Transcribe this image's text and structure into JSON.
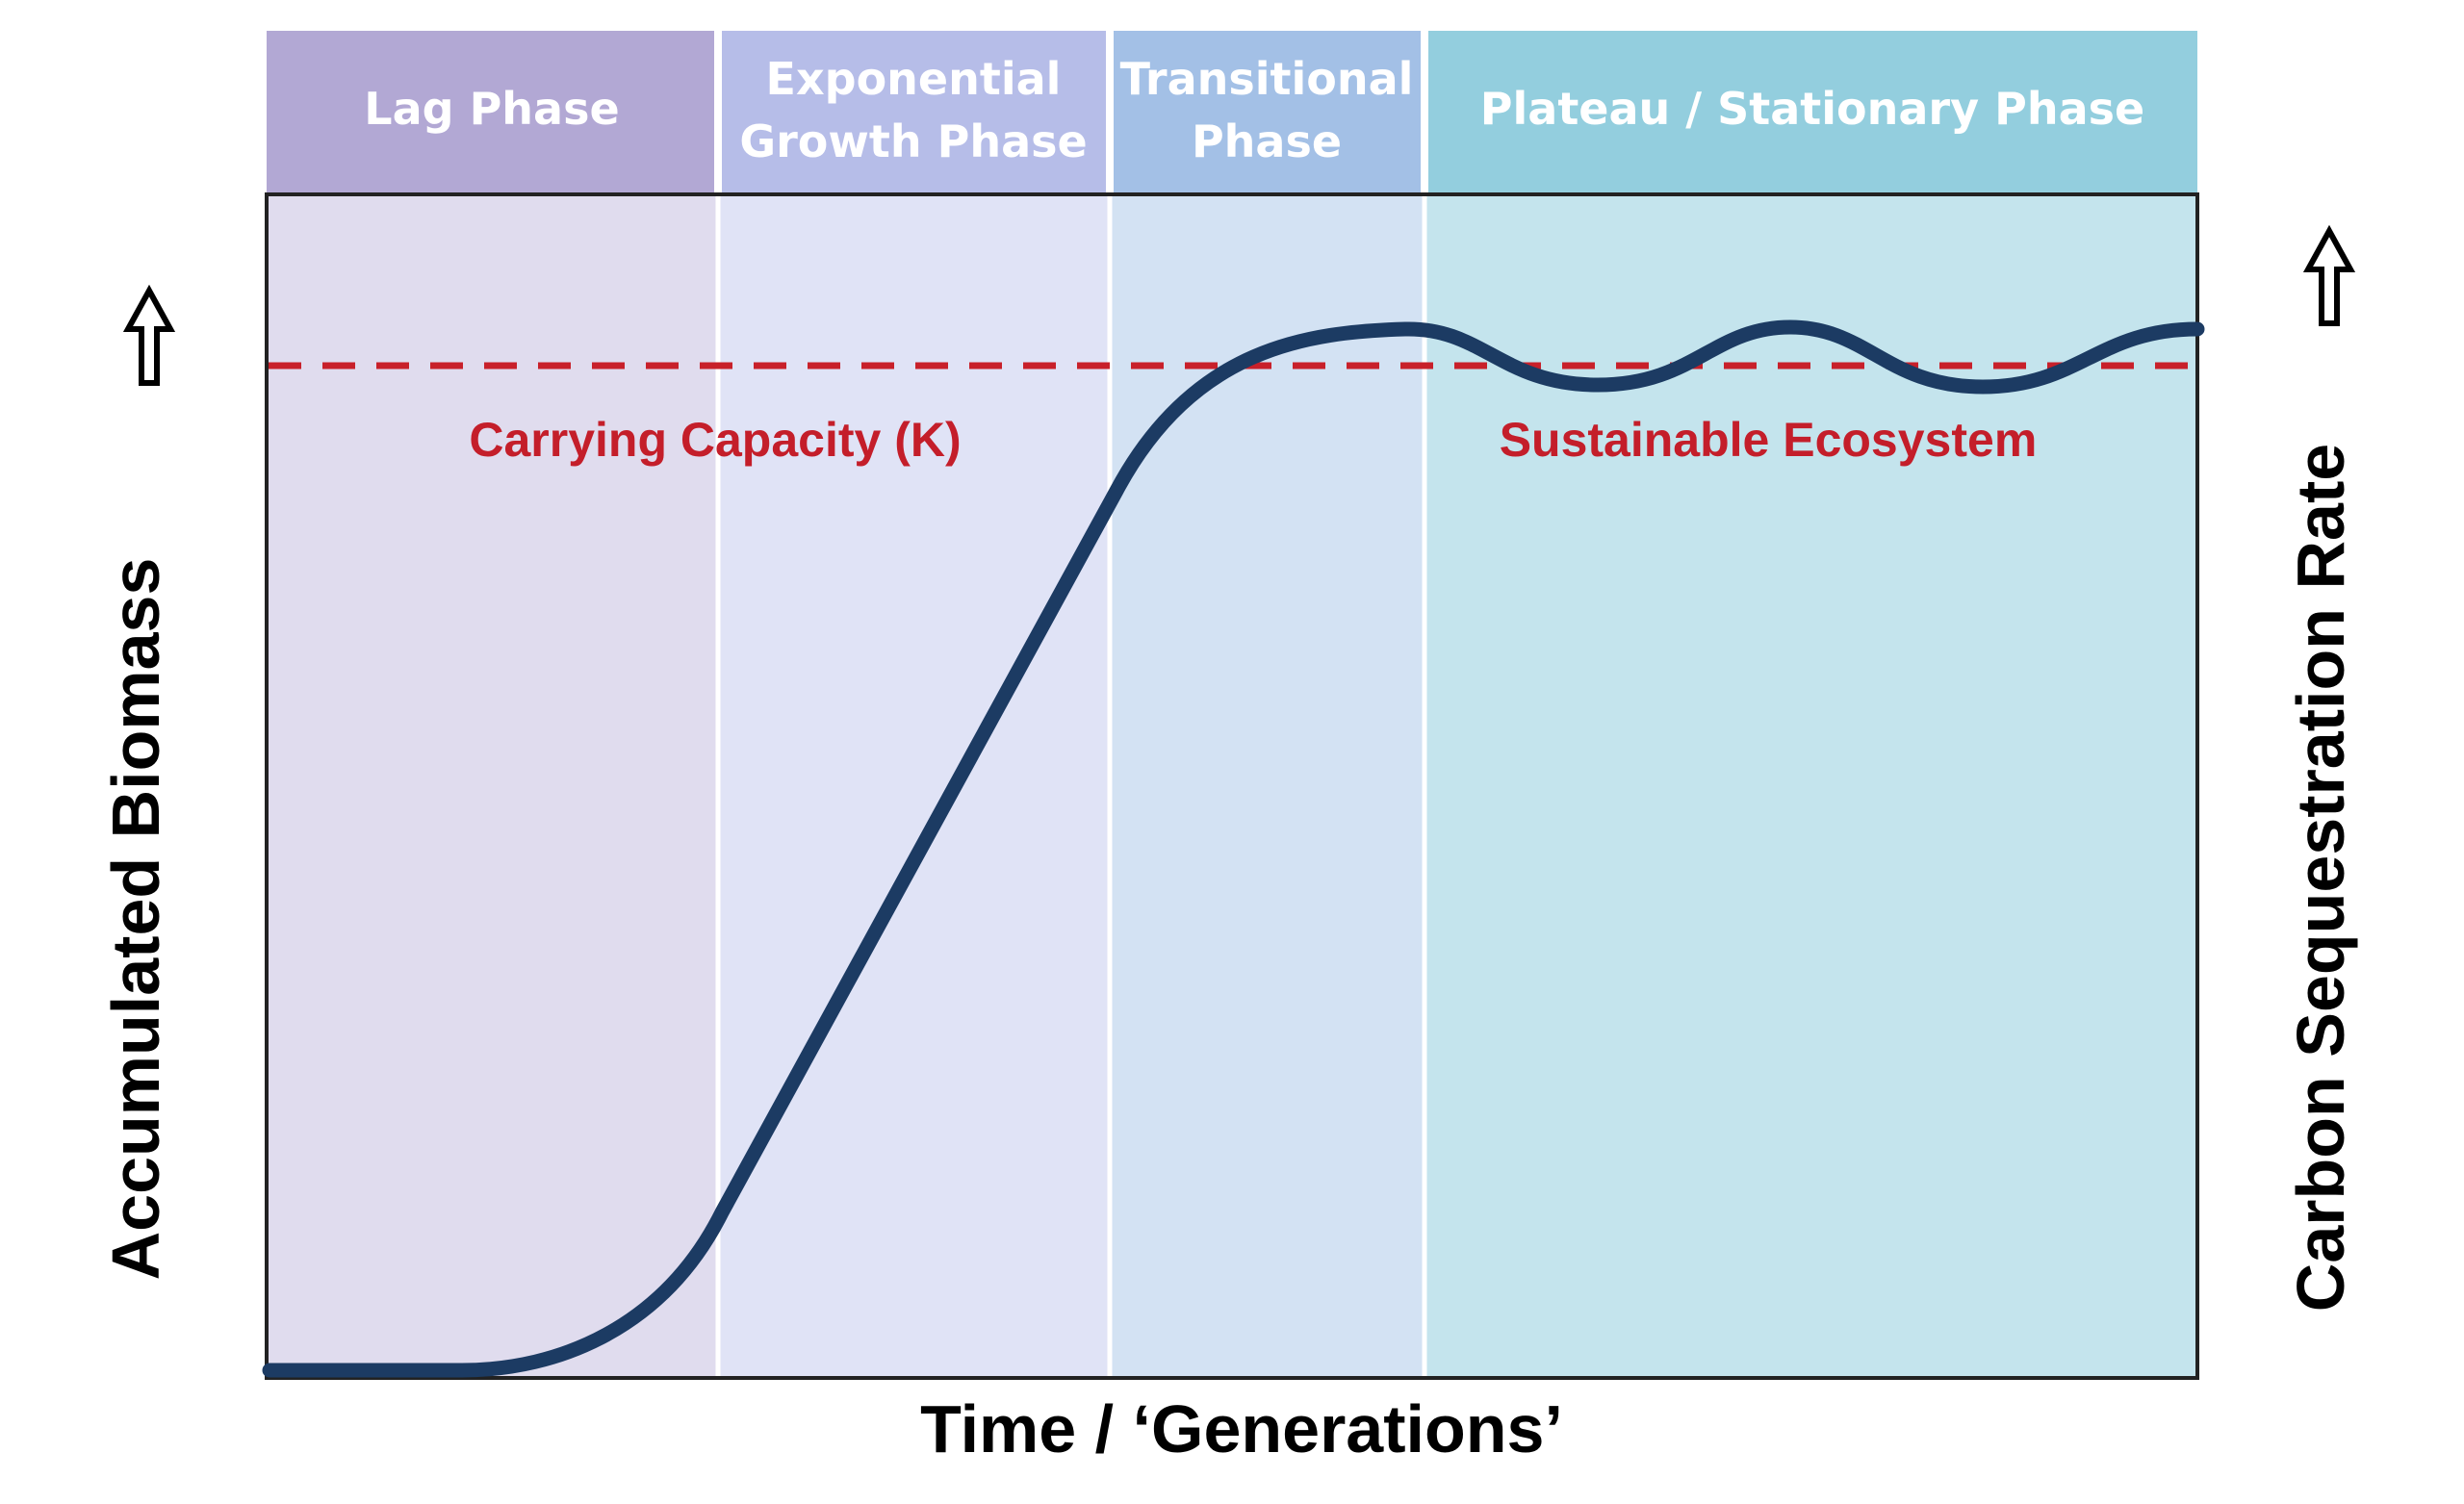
{
  "phases": [
    {
      "lines": [
        "Lag Phase"
      ],
      "header_color": "#b2a8d4",
      "band_color": "#e0dcee"
    },
    {
      "lines": [
        "Exponential",
        "Growth Phase"
      ],
      "header_color": "#b6bde8",
      "band_color": "#e0e3f6"
    },
    {
      "lines": [
        "Transitional",
        "Phase"
      ],
      "header_color": "#a3c0e6",
      "band_color": "#d3e2f3"
    },
    {
      "lines": [
        "Plateau / Stationary Phase"
      ],
      "header_color": "#93cede",
      "band_color": "#c4e4ed"
    }
  ],
  "carrying_capacity_label": "Carrying Capacity (K)",
  "sustainable_label": "Sustainable Ecosystem",
  "x_axis_label": "Time / ‘Generations’",
  "y_axis_left_label": "Accumulated Biomass",
  "y_axis_right_label": "Carbon Sequestration Rate",
  "colors": {
    "curve": "#1c3b63",
    "dashed_line": "#c8202a",
    "annotation_text": "#c41e2a",
    "header_text": "#ffffff",
    "axis_text": "#000000",
    "frame": "#222222",
    "divider": "#ffffff"
  },
  "icons": {
    "left_axis_arrow": "up-arrow-icon",
    "right_axis_arrow": "up-arrow-icon"
  }
}
